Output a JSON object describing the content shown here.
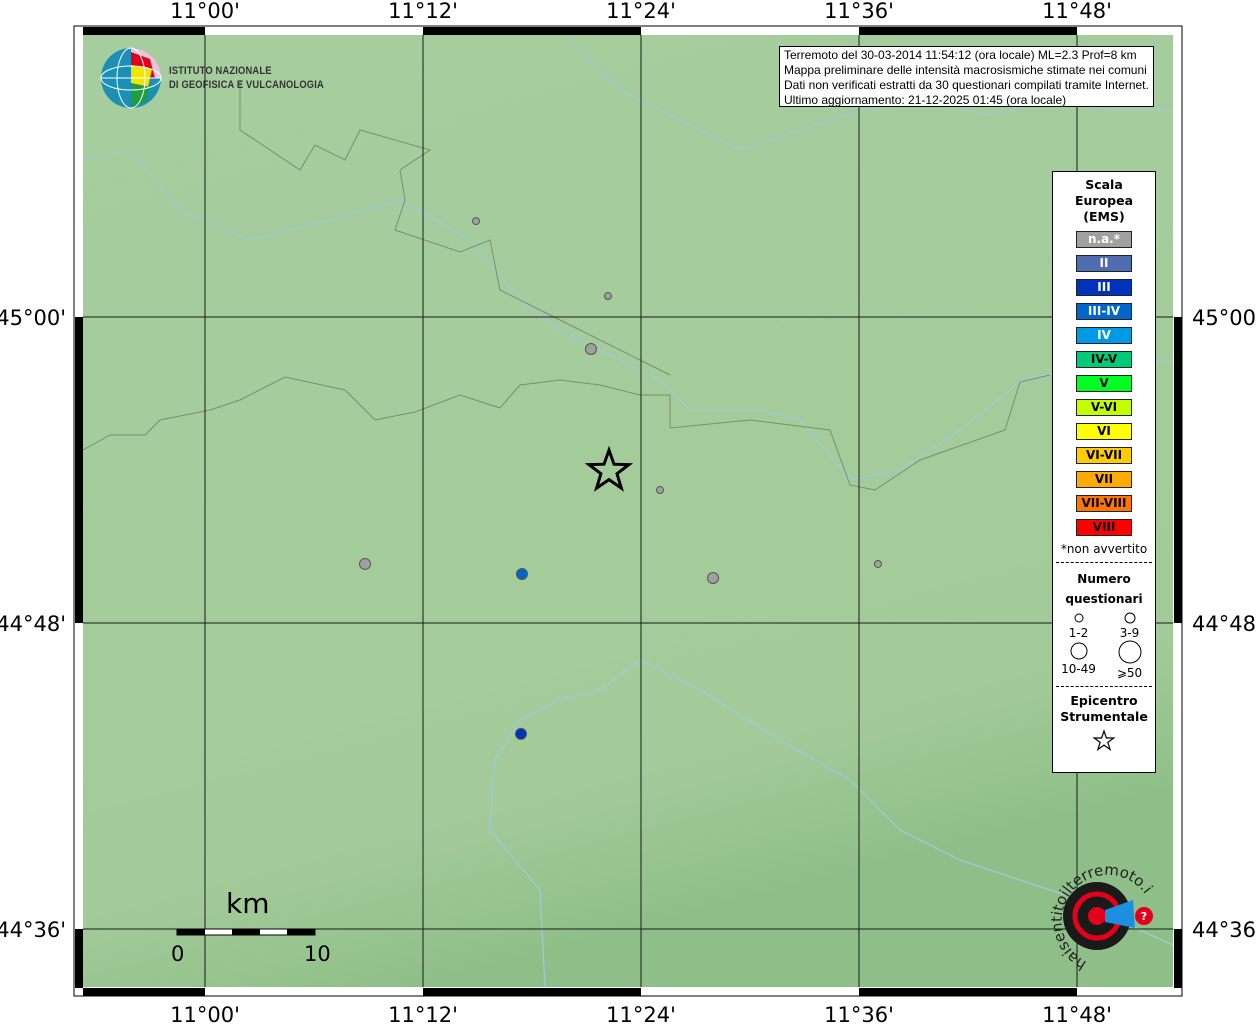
{
  "info_box": {
    "lines": [
      "Terremoto del 30-03-2014 11:54:12 (ora locale) ML=2.3 Prof=8 km",
      "Mappa preliminare delle intensità macrosismiche stimate nei comuni",
      "Dati non verificati estratti da 30 questionari compilati tramite Internet.",
      "Ultimo aggiornamento: 21-12-2025 01:45 (ora locale)"
    ]
  },
  "logo_ingv": {
    "line1": "ISTITUTO NAZIONALE",
    "line2": "DI GEOFISICA E VULCANOLOGIA"
  },
  "logo_hsit": {
    "text": "www.haisentitoilterremoto.it"
  },
  "axes": {
    "lon_labels": [
      "11°00'",
      "11°12'",
      "11°24'",
      "11°36'",
      "11°48'"
    ],
    "lat_labels": [
      "45°00'",
      "44°48'",
      "44°36'"
    ]
  },
  "scale_bar": {
    "unit": "km",
    "start": "0",
    "end": "10"
  },
  "legend": {
    "title": [
      "Scala",
      "Europea",
      "(EMS)"
    ],
    "classes": [
      {
        "label": "n.a.*",
        "color": "#a0a0a0",
        "text_color": "#ffffff"
      },
      {
        "label": "II",
        "color": "#4f6cb0",
        "text_color": "#ffffff"
      },
      {
        "label": "III",
        "color": "#0033bb",
        "text_color": "#ffffff"
      },
      {
        "label": "III-IV",
        "color": "#0066cc",
        "text_color": "#ffffff"
      },
      {
        "label": "IV",
        "color": "#0099e6",
        "text_color": "#ffffff"
      },
      {
        "label": "IV-V",
        "color": "#00cc77",
        "text_color": "#000000"
      },
      {
        "label": "V",
        "color": "#00ff22",
        "text_color": "#000000"
      },
      {
        "label": "V-VI",
        "color": "#c4ff00",
        "text_color": "#000000"
      },
      {
        "label": "VI",
        "color": "#ffff00",
        "text_color": "#000000"
      },
      {
        "label": "VI-VII",
        "color": "#ffcc00",
        "text_color": "#000000"
      },
      {
        "label": "VII",
        "color": "#ffaa00",
        "text_color": "#000000"
      },
      {
        "label": "VII-VIII",
        "color": "#ff7700",
        "text_color": "#000000"
      },
      {
        "label": "VIII",
        "color": "#ff0000",
        "text_color": "#000000"
      }
    ],
    "note": "*non avvertito",
    "count_title": [
      "Numero",
      "questionari"
    ],
    "count_sizes": [
      "1-2",
      "3-9",
      "10-49",
      "⩾50"
    ],
    "epicenter_title": [
      "Epicentro",
      "Strumentale"
    ]
  },
  "epicenter": {
    "lon": 11.3706,
    "lat": 44.8993
  },
  "observations": [
    {
      "lon": 11.2486,
      "lat": 45.0627,
      "intensity": "n.a.*",
      "count": "1-2"
    },
    {
      "lon": 11.3697,
      "lat": 45.0137,
      "intensity": "n.a.*",
      "count": "1-2"
    },
    {
      "lon": 11.3541,
      "lat": 44.9791,
      "intensity": "n.a.*",
      "count": "3-9"
    },
    {
      "lon": 11.4174,
      "lat": 44.8869,
      "intensity": "n.a.*",
      "count": "1-2"
    },
    {
      "lon": 11.1468,
      "lat": 44.8386,
      "intensity": "n.a.*",
      "count": "3-9"
    },
    {
      "lon": 11.4661,
      "lat": 44.8294,
      "intensity": "n.a.*",
      "count": "3-9"
    },
    {
      "lon": 11.6174,
      "lat": 44.8386,
      "intensity": "n.a.*",
      "count": "1-2"
    },
    {
      "lon": 11.2908,
      "lat": 44.832,
      "intensity": "III-IV",
      "count": "3-9"
    },
    {
      "lon": 11.2899,
      "lat": 44.7275,
      "intensity": "III",
      "count": "3-9"
    }
  ]
}
